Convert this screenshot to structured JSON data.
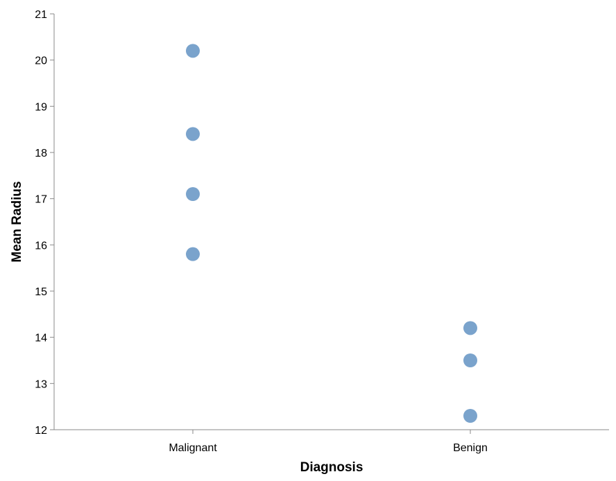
{
  "chart_data": {
    "type": "scatter",
    "title": "",
    "xlabel": "Diagnosis",
    "ylabel": "Mean Radius",
    "categories": [
      "Malignant",
      "Benign"
    ],
    "ylim": [
      12,
      21
    ],
    "yticks": [
      12,
      13,
      14,
      15,
      16,
      17,
      18,
      19,
      20,
      21
    ],
    "grid": false,
    "point_color": "#7aa3cc",
    "points": [
      {
        "x": "Malignant",
        "y": 20.2
      },
      {
        "x": "Malignant",
        "y": 18.4
      },
      {
        "x": "Malignant",
        "y": 17.1
      },
      {
        "x": "Malignant",
        "y": 15.8
      },
      {
        "x": "Benign",
        "y": 14.2
      },
      {
        "x": "Benign",
        "y": 13.5
      },
      {
        "x": "Benign",
        "y": 12.3
      }
    ]
  }
}
